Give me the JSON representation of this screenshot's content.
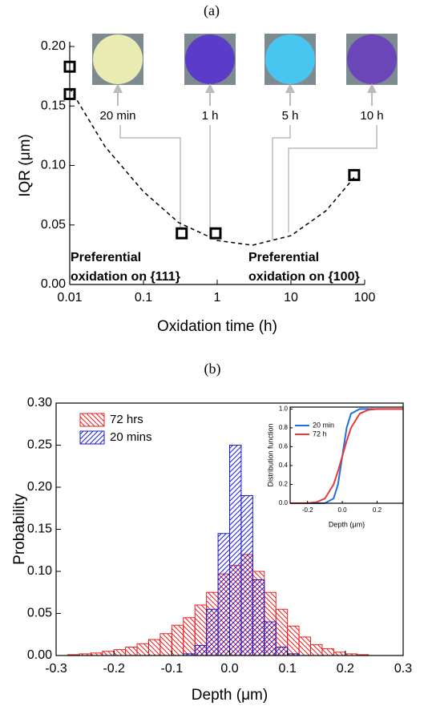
{
  "chart_data": [
    {
      "type": "scatter",
      "panel": "(a)",
      "xlabel": "Oxidation time (h)",
      "ylabel": "IQR (μm)",
      "xscale": "log",
      "xlim": [
        0.01,
        100
      ],
      "xticks": [
        0.01,
        0.1,
        1,
        10,
        100
      ],
      "ylim": [
        0,
        0.2
      ],
      "yticks": [
        {
          "value": 0,
          "label": "0.00"
        },
        {
          "value": 0.05,
          "label": "0.05"
        },
        {
          "value": 0.1,
          "label": "0.10"
        },
        {
          "value": 0.15,
          "label": "0.15"
        },
        {
          "value": 0.2,
          "label": "0.20"
        }
      ],
      "series": [
        {
          "color": "#000000",
          "marker": "square",
          "x": [
            0.01,
            0.01,
            0.33,
            0.95,
            72
          ],
          "values": [
            0.183,
            0.16,
            0.043,
            0.043,
            0.092
          ]
        },
        {
          "color": "#000000",
          "style": "dashed",
          "x": [
            0.01,
            0.03,
            0.1,
            0.3,
            1,
            3,
            10,
            30,
            72
          ],
          "values": [
            0.165,
            0.116,
            0.078,
            0.052,
            0.037,
            0.033,
            0.041,
            0.062,
            0.09
          ]
        }
      ],
      "photo_labels": [
        "20 min",
        "1 h",
        "5 h",
        "10 h"
      ],
      "notes": [
        {
          "lines": [
            "Preferential",
            "oxidation on {111}"
          ],
          "color": "#1a1ae6"
        },
        {
          "lines": [
            "Preferential",
            "oxidation on {100}"
          ],
          "color": "#e61a1a"
        }
      ]
    },
    {
      "type": "histogram",
      "panel": "(b)",
      "xlabel": "Depth (μm)",
      "ylabel": "Probability",
      "bins": [
        -0.3,
        -0.28,
        -0.26,
        -0.24,
        -0.22,
        -0.2,
        -0.18,
        -0.16,
        -0.14,
        -0.12,
        -0.1,
        -0.08,
        -0.06,
        -0.04,
        -0.02,
        0,
        0.02,
        0.04,
        0.06,
        0.08,
        0.1,
        0.12,
        0.14,
        0.16,
        0.18,
        0.2,
        0.22,
        0.24,
        0.26,
        0.28,
        0.3
      ],
      "series": [
        {
          "name": "72 hrs",
          "color": "#e82020",
          "hatch": "back",
          "values": [
            0,
            0.001,
            0.002,
            0.003,
            0.005,
            0.007,
            0.01,
            0.014,
            0.019,
            0.026,
            0.036,
            0.045,
            0.06,
            0.075,
            0.097,
            0.107,
            0.12,
            0.1,
            0.075,
            0.055,
            0.035,
            0.022,
            0.013,
            0.008,
            0.004,
            0.002,
            0.001,
            0,
            0,
            0
          ]
        },
        {
          "name": "20 mins",
          "color": "#1c1ccc",
          "hatch": "forward",
          "values": [
            0,
            0,
            0,
            0,
            0,
            0,
            0,
            0,
            0,
            0,
            0,
            0.002,
            0.012,
            0.055,
            0.145,
            0.25,
            0.19,
            0.09,
            0.04,
            0.01,
            0.002,
            0,
            0,
            0,
            0,
            0,
            0,
            0,
            0,
            0
          ]
        }
      ],
      "xlim": [
        -0.3,
        0.3
      ],
      "xticks": [
        -0.3,
        -0.2,
        -0.1,
        {
          "value": 0,
          "label": "0.0"
        },
        0.1,
        0.2,
        0.3
      ],
      "ylim": [
        0,
        0.3
      ],
      "yticks": [
        {
          "value": 0,
          "label": "0.00"
        },
        {
          "value": 0.05,
          "label": "0.05"
        },
        {
          "value": 0.1,
          "label": "0.10"
        },
        {
          "value": 0.15,
          "label": "0.15"
        },
        {
          "value": 0.2,
          "label": "0.20"
        },
        {
          "value": 0.25,
          "label": "0.25"
        },
        {
          "value": 0.3,
          "label": "0.30"
        }
      ],
      "legend": "upper left"
    },
    {
      "type": "line",
      "xlabel": "Depth (μm)",
      "ylabel": "Distribution function",
      "x": [
        -0.3,
        -0.2,
        -0.15,
        -0.1,
        -0.05,
        -0.025,
        0,
        0.025,
        0.05,
        0.1,
        0.15,
        0.2,
        0.35
      ],
      "series": [
        {
          "name": "20 min",
          "color": "#1f6fe0",
          "values": [
            0,
            0,
            0,
            0.001,
            0.05,
            0.2,
            0.5,
            0.8,
            0.95,
            1,
            1,
            1,
            1
          ]
        },
        {
          "name": "72 h",
          "color": "#e83838",
          "values": [
            0,
            0.001,
            0.01,
            0.05,
            0.2,
            0.34,
            0.5,
            0.66,
            0.8,
            0.95,
            0.99,
            1,
            1
          ]
        }
      ],
      "xlim": [
        -0.3,
        0.35
      ],
      "xticks": [
        -0.2,
        {
          "value": 0,
          "label": "0.0"
        },
        0.2
      ],
      "ylim": [
        0,
        1.02
      ],
      "yticks": [
        {
          "value": 0,
          "label": "0.0"
        },
        {
          "value": 0.2,
          "label": "0.2"
        },
        {
          "value": 0.4,
          "label": "0.4"
        },
        {
          "value": 0.6,
          "label": "0.6"
        },
        {
          "value": 0.8,
          "label": "0.8"
        },
        {
          "value": 1,
          "label": "1.0"
        }
      ],
      "legend": "upper left"
    }
  ]
}
